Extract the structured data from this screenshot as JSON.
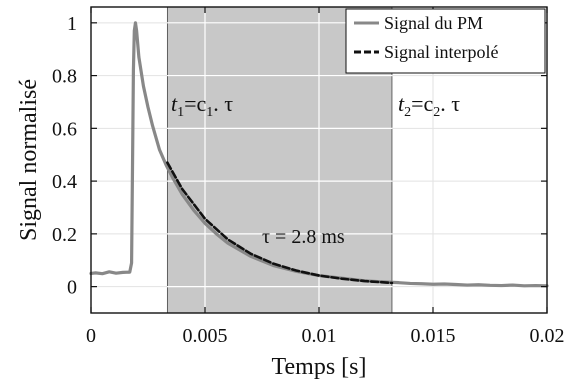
{
  "chart_data": {
    "type": "line",
    "title": "",
    "xlabel": "Temps [s]",
    "ylabel": "Signal normalisé",
    "xlim": [
      0,
      0.02
    ],
    "ylim": [
      -0.1,
      1.06
    ],
    "x_ticks": [
      0,
      0.005,
      0.01,
      0.015,
      0.02
    ],
    "x_tick_labels": [
      "0",
      "0.005",
      "0.01",
      "0.015",
      "0.02"
    ],
    "y_ticks": [
      0,
      0.2,
      0.4,
      0.6,
      0.8,
      1
    ],
    "y_tick_labels": [
      "0",
      "0.2",
      "0.4",
      "0.6",
      "0.8",
      "1"
    ],
    "grid": true,
    "legend_position": "top-right",
    "shaded_region": {
      "x_start": 0.00335,
      "x_end": 0.0132,
      "color": "#c8c8c8"
    },
    "annotations": {
      "t1": {
        "t": "t",
        "sub": "1",
        "eq": "=c",
        "sub2": "1",
        "rest": ". τ"
      },
      "t2": {
        "t": "t",
        "sub": "2",
        "eq": "=c",
        "sub2": "2",
        "rest": ". τ"
      },
      "tau": "τ = 2.8 ms"
    },
    "series": [
      {
        "name": "Signal du  PM",
        "color": "#888888",
        "style": "solid",
        "x": [
          0,
          0.0002,
          0.0005,
          0.0008,
          0.0011,
          0.0014,
          0.0017,
          0.00178,
          0.00182,
          0.00186,
          0.0019,
          0.00195,
          0.002,
          0.0021,
          0.0023,
          0.0025,
          0.0027,
          0.003,
          0.0033,
          0.0036,
          0.004,
          0.0045,
          0.005,
          0.0055,
          0.006,
          0.007,
          0.008,
          0.009,
          0.01,
          0.011,
          0.012,
          0.013,
          0.0135,
          0.014,
          0.0145,
          0.015,
          0.0155,
          0.016,
          0.0165,
          0.017,
          0.0175,
          0.018,
          0.0185,
          0.019,
          0.0195,
          0.02
        ],
        "y": [
          0.05,
          0.052,
          0.049,
          0.056,
          0.051,
          0.054,
          0.055,
          0.09,
          0.45,
          0.82,
          0.97,
          1.0,
          0.97,
          0.87,
          0.76,
          0.68,
          0.61,
          0.52,
          0.46,
          0.41,
          0.35,
          0.29,
          0.24,
          0.2,
          0.165,
          0.115,
          0.08,
          0.058,
          0.042,
          0.032,
          0.022,
          0.017,
          0.015,
          0.012,
          0.011,
          0.009,
          0.01,
          0.008,
          0.006,
          0.007,
          0.005,
          0.004,
          0.006,
          0.003,
          0.004,
          0.003
        ]
      },
      {
        "name": "Signal interpolé",
        "color": "#111111",
        "style": "dashed",
        "x": [
          0.00335,
          0.004,
          0.005,
          0.006,
          0.007,
          0.008,
          0.009,
          0.01,
          0.011,
          0.012,
          0.0132
        ],
        "y": [
          0.47,
          0.37,
          0.257,
          0.179,
          0.125,
          0.087,
          0.061,
          0.042,
          0.03,
          0.021,
          0.014
        ]
      }
    ]
  }
}
